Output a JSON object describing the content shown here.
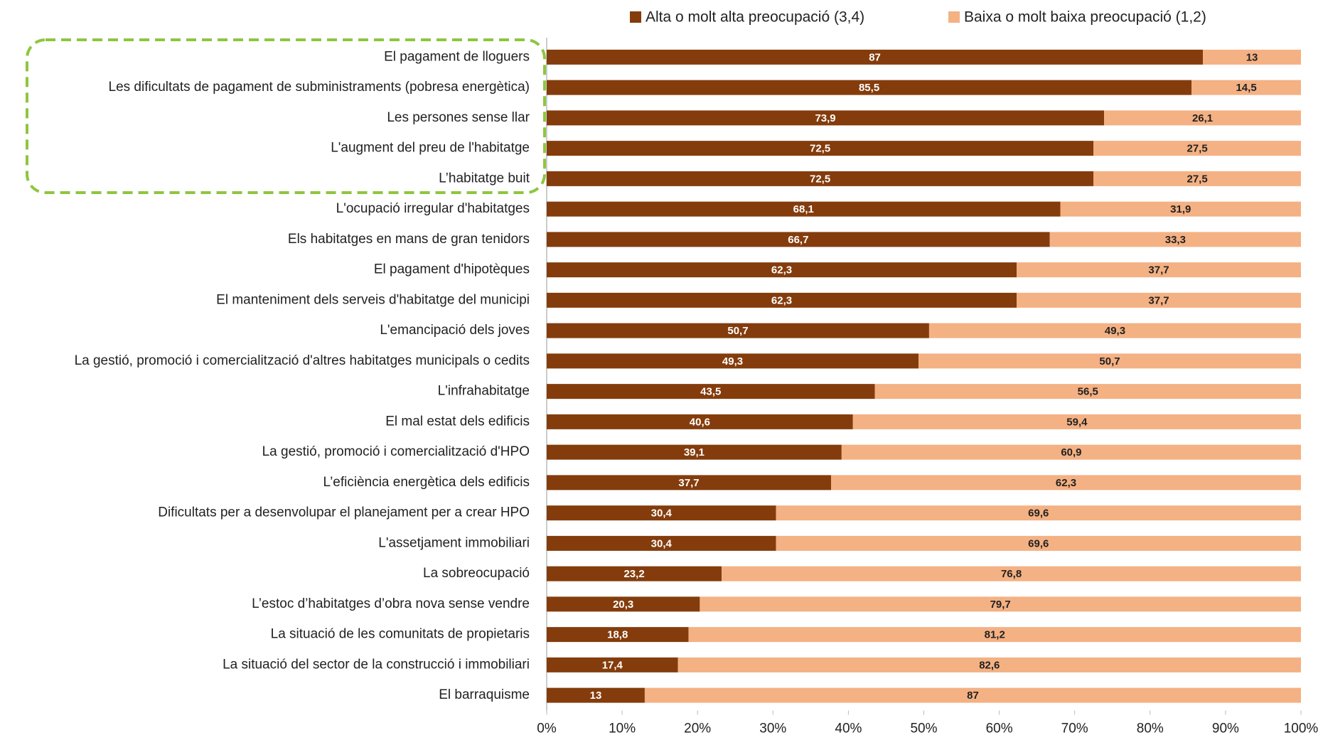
{
  "chart_data": {
    "type": "stacked_barh",
    "categories": [
      "El pagament de lloguers",
      "Les dificultats de pagament de subministraments (pobresa energètica)",
      "Les persones sense llar",
      "L'augment del preu de l'habitatge",
      "L’habitatge buit",
      "L'ocupació irregular d'habitatges",
      "Els habitatges en mans de gran tenidors",
      "El pagament d'hipotèques",
      "El manteniment dels serveis d'habitatge del municipi",
      "L'emancipació dels joves",
      "La gestió, promoció i comercialització d'altres habitatges municipals o cedits",
      "L'infrahabitatge",
      "El mal estat dels edificis",
      "La gestió, promoció i comercialització d'HPO",
      "L’eficiència energètica dels edificis",
      "Dificultats per a desenvolupar el planejament per a crear HPO",
      "L'assetjament immobiliari",
      "La sobreocupació",
      "L’estoc d’habitatges d’obra nova sense vendre",
      "La situació de les comunitats de propietaris",
      "La situació del sector de la construcció i immobiliari",
      "El barraquisme"
    ],
    "series": [
      {
        "name": "Alta o molt alta preocupació (3,4)",
        "color": "#843c0c",
        "label_color": "#ffffff",
        "values": [
          87,
          85.5,
          73.9,
          72.5,
          72.5,
          68.1,
          66.7,
          62.3,
          62.3,
          50.7,
          49.3,
          43.5,
          40.6,
          39.1,
          37.7,
          30.4,
          30.4,
          23.2,
          20.3,
          18.8,
          17.4,
          13
        ],
        "value_labels": [
          "87",
          "85,5",
          "73,9",
          "72,5",
          "72,5",
          "68,1",
          "66,7",
          "62,3",
          "62,3",
          "50,7",
          "49,3",
          "43,5",
          "40,6",
          "39,1",
          "37,7",
          "30,4",
          "30,4",
          "23,2",
          "20,3",
          "18,8",
          "17,4",
          "13"
        ]
      },
      {
        "name": "Baixa o molt baixa preocupació (1,2)",
        "color": "#f4b183",
        "label_color": "#222222",
        "values": [
          13,
          14.5,
          26.1,
          27.5,
          27.5,
          31.9,
          33.3,
          37.7,
          37.7,
          49.3,
          50.7,
          56.5,
          59.4,
          60.9,
          62.3,
          69.6,
          69.6,
          76.8,
          79.7,
          81.2,
          82.6,
          87
        ],
        "value_labels": [
          "13",
          "14,5",
          "26,1",
          "27,5",
          "27,5",
          "31,9",
          "33,3",
          "37,7",
          "37,7",
          "49,3",
          "50,7",
          "56,5",
          "59,4",
          "60,9",
          "62,3",
          "69,6",
          "69,6",
          "76,8",
          "79,7",
          "81,2",
          "82,6",
          "87"
        ]
      }
    ],
    "xlim": [
      0,
      100
    ],
    "xticks": [
      {
        "value": 0,
        "label": "0%"
      },
      {
        "value": 10,
        "label": "10%"
      },
      {
        "value": 20,
        "label": "20%"
      },
      {
        "value": 30,
        "label": "30%"
      },
      {
        "value": 40,
        "label": "40%"
      },
      {
        "value": 50,
        "label": "50%"
      },
      {
        "value": 60,
        "label": "60%"
      },
      {
        "value": 70,
        "label": "70%"
      },
      {
        "value": 80,
        "label": "80%"
      },
      {
        "value": 90,
        "label": "90%"
      },
      {
        "value": 100,
        "label": "100%"
      }
    ],
    "legend": "top"
  }
}
